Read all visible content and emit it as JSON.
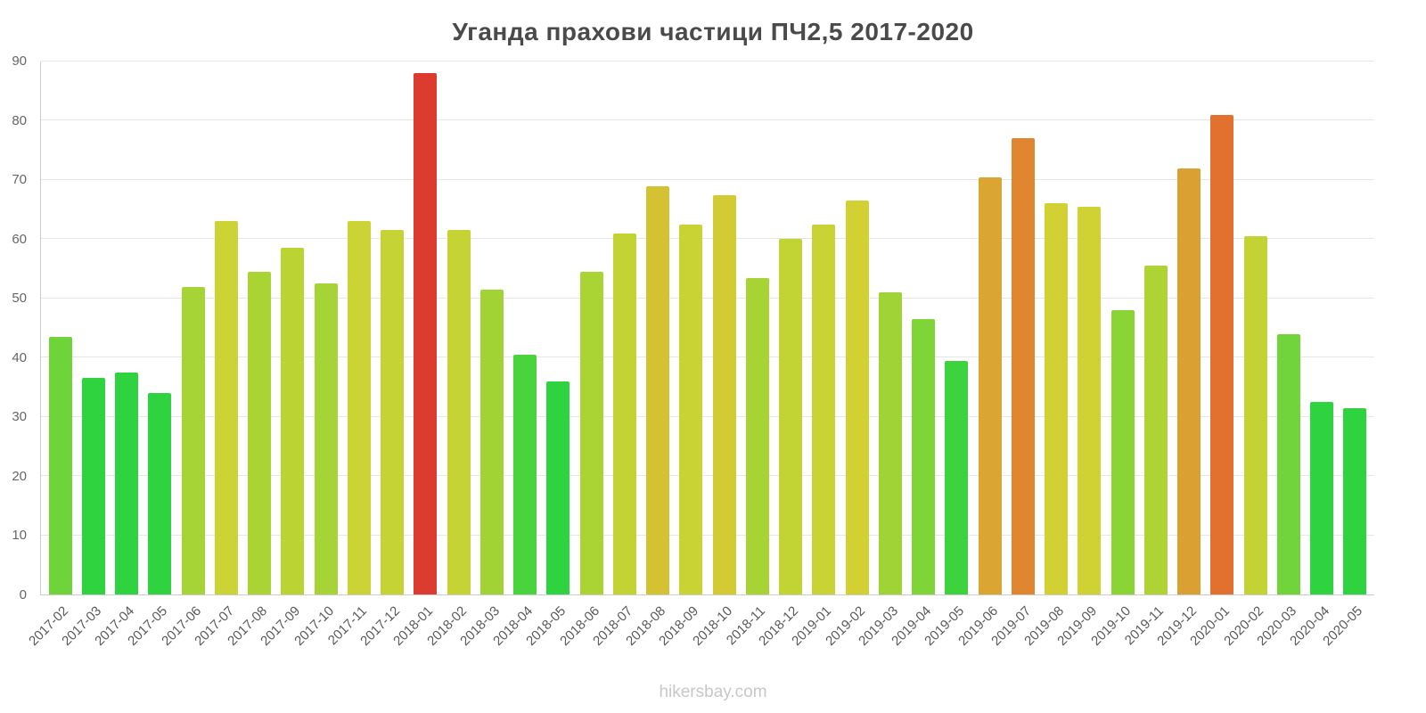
{
  "title": "Уганда прахови частици ПЧ2,5 2017-2020",
  "footer": "hikersbay.com",
  "colors": {
    "grid": "#e6e6e6",
    "axis": "#cccccc",
    "tick_label": "#666666",
    "x_label": "#595959",
    "title": "#4a4a4a",
    "footer": "#c8c8c8"
  },
  "chart_data": {
    "type": "bar",
    "title": "Уганда прахови частици ПЧ2,5 2017-2020",
    "xlabel": "",
    "ylabel": "",
    "ylim": [
      0,
      90
    ],
    "yticks": [
      0,
      10,
      20,
      30,
      40,
      50,
      60,
      70,
      80,
      90
    ],
    "grid": true,
    "legend": false,
    "categories": [
      "2017-02",
      "2017-03",
      "2017-04",
      "2017-05",
      "2017-06",
      "2017-07",
      "2017-08",
      "2017-09",
      "2017-10",
      "2017-11",
      "2017-12",
      "2018-01",
      "2018-02",
      "2018-03",
      "2018-04",
      "2018-05",
      "2018-06",
      "2018-07",
      "2018-08",
      "2018-09",
      "2018-10",
      "2018-11",
      "2018-12",
      "2019-01",
      "2019-02",
      "2019-03",
      "2019-04",
      "2019-05",
      "2019-06",
      "2019-07",
      "2019-08",
      "2019-09",
      "2019-10",
      "2019-11",
      "2019-12",
      "2020-01",
      "2020-02",
      "2020-03",
      "2020-04",
      "2020-05"
    ],
    "values": [
      43.5,
      36.5,
      37.5,
      34,
      52,
      63,
      54.5,
      58.5,
      52.5,
      63,
      61.5,
      88,
      61.5,
      51.5,
      40.5,
      36,
      54.5,
      61,
      69,
      62.5,
      67.5,
      53.5,
      60,
      62.5,
      66.5,
      51,
      46.5,
      39.5,
      70.5,
      77,
      66,
      65.5,
      48,
      55.5,
      72,
      81,
      60.5,
      44,
      32.5,
      31.5
    ],
    "bar_colors": [
      "#6fd43a",
      "#2fd33f",
      "#2fd33f",
      "#2fd33f",
      "#a6d335",
      "#ccd334",
      "#aad334",
      "#bcd334",
      "#a6d335",
      "#ccd334",
      "#c6d334",
      "#dc3b30",
      "#c6d334",
      "#a2d335",
      "#49d33d",
      "#2fd33f",
      "#aad334",
      "#c4d334",
      "#d5c233",
      "#cad334",
      "#d3cb33",
      "#a8d334",
      "#c2d334",
      "#cad334",
      "#d2d033",
      "#a0d335",
      "#7fd437",
      "#3dd33e",
      "#dba532",
      "#e08631",
      "#d1d133",
      "#d0d233",
      "#8bd436",
      "#afd334",
      "#dba032",
      "#e2712f",
      "#c3d334",
      "#70d43a",
      "#2fd33f",
      "#2fd33f"
    ]
  }
}
